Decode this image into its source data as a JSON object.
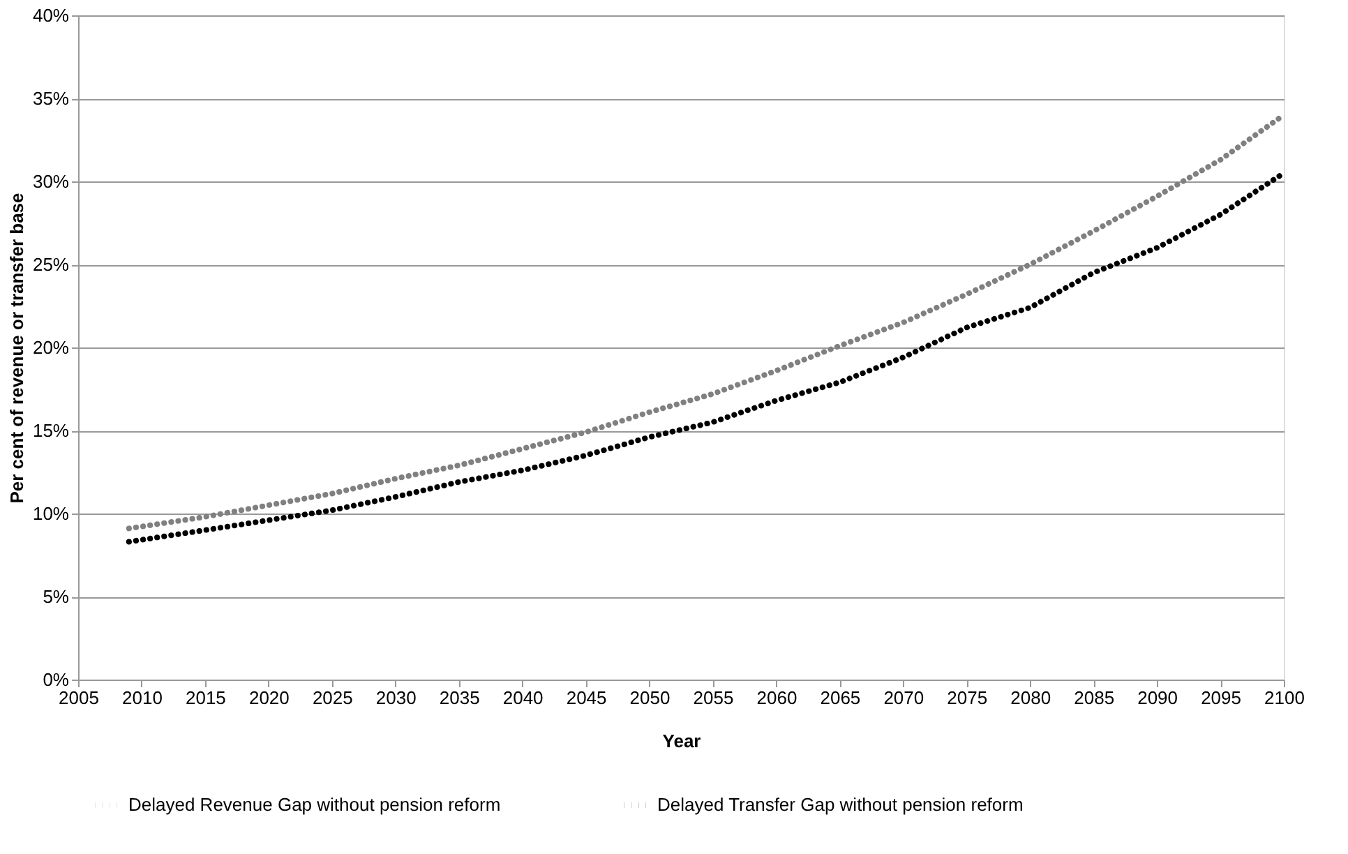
{
  "chart_data": {
    "type": "line",
    "xlabel": "Year",
    "ylabel": "Per cent of revenue or transfer base",
    "x": [
      2009,
      2015,
      2020,
      2025,
      2030,
      2035,
      2040,
      2045,
      2050,
      2055,
      2060,
      2065,
      2070,
      2075,
      2080,
      2085,
      2090,
      2095,
      2100
    ],
    "series": [
      {
        "name": "Delayed Revenue Gap without pension reform",
        "color": "#808080",
        "values": [
          9.1,
          9.8,
          10.5,
          11.2,
          12.1,
          12.9,
          13.9,
          14.9,
          16.1,
          17.2,
          18.6,
          20.1,
          21.5,
          23.2,
          25.0,
          27.0,
          29.1,
          31.3,
          34.0
        ]
      },
      {
        "name": "Delayed Transfer Gap without pension reform",
        "color": "#000000",
        "values": [
          8.3,
          9.0,
          9.6,
          10.2,
          11.0,
          11.9,
          12.6,
          13.5,
          14.6,
          15.5,
          16.8,
          17.9,
          19.4,
          21.2,
          22.4,
          24.5,
          26.0,
          28.0,
          30.5
        ]
      }
    ],
    "xlim": [
      2005,
      2100
    ],
    "xticks": [
      2005,
      2010,
      2015,
      2020,
      2025,
      2030,
      2035,
      2040,
      2045,
      2050,
      2055,
      2060,
      2065,
      2070,
      2075,
      2080,
      2085,
      2090,
      2095,
      2100
    ],
    "ylim": [
      0,
      40
    ],
    "yticks": [
      {
        "value": 0,
        "label": "0%"
      },
      {
        "value": 5,
        "label": "5%"
      },
      {
        "value": 10,
        "label": "10%"
      },
      {
        "value": 15,
        "label": "15%"
      },
      {
        "value": 20,
        "label": "20%"
      },
      {
        "value": 25,
        "label": "25%"
      },
      {
        "value": 30,
        "label": "30%"
      },
      {
        "value": 35,
        "label": "35%"
      },
      {
        "value": 40,
        "label": "40%"
      }
    ],
    "grid": "y",
    "legend": "bottom",
    "line_style": "dotted",
    "marker": "none"
  }
}
